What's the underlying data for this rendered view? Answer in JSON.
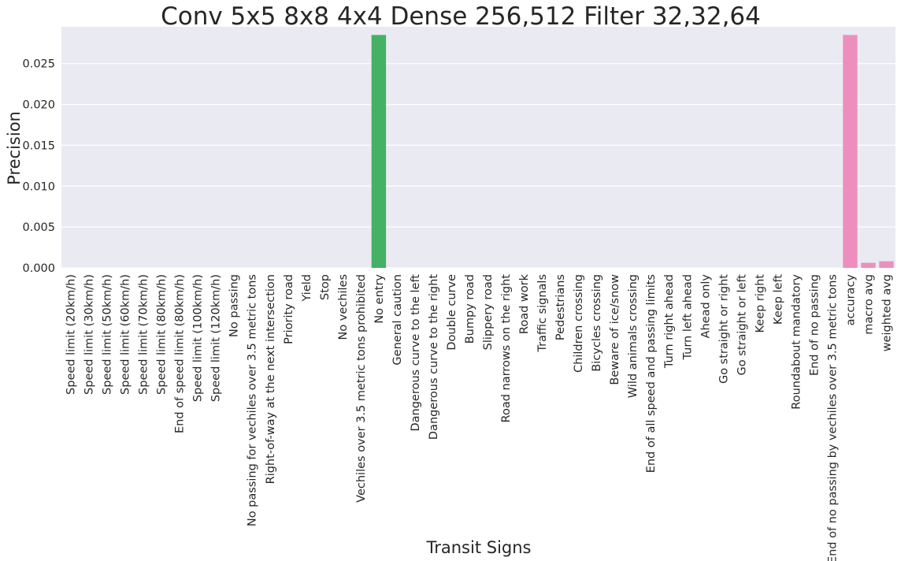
{
  "chart_data": {
    "type": "bar",
    "title": "Conv 5x5 8x8 4x4 Dense 256,512 Filter 32,32,64",
    "xlabel": "Transit Signs",
    "ylabel": "Precision",
    "ylim": [
      0,
      0.0295
    ],
    "yticks": [
      "0.000",
      "0.005",
      "0.010",
      "0.015",
      "0.020",
      "0.025"
    ],
    "ytick_values": [
      0,
      0.005,
      0.01,
      0.015,
      0.02,
      0.025
    ],
    "grid": true,
    "legend": "none",
    "categories": [
      "Speed limit (20km/h)",
      "Speed limit (30km/h)",
      "Speed limit (50km/h)",
      "Speed limit (60km/h)",
      "Speed limit (70km/h)",
      "Speed limit (80km/h)",
      "End of speed limit (80km/h)",
      "Speed limit (100km/h)",
      "Speed limit (120km/h)",
      "No passing",
      "No passing for vechiles over 3.5 metric tons",
      "Right-of-way at the next intersection",
      "Priority road",
      "Yield",
      "Stop",
      "No vechiles",
      "Vechiles over 3.5 metric tons prohibited",
      "No entry",
      "General caution",
      "Dangerous curve to the left",
      "Dangerous curve to the right",
      "Double curve",
      "Bumpy road",
      "Slippery road",
      "Road narrows on the right",
      "Road work",
      "Traffic signals",
      "Pedestrians",
      "Children crossing",
      "Bicycles crossing",
      "Beware of ice/snow",
      "Wild animals crossing",
      "End of all speed and passing limits",
      "Turn right ahead",
      "Turn left ahead",
      "Ahead only",
      "Go straight or right",
      "Go straight or left",
      "Keep right",
      "Keep left",
      "Roundabout mandatory",
      "End of no passing",
      "End of no passing by vechiles over 3.5 metric tons",
      "accuracy",
      "macro avg",
      "weighted avg"
    ],
    "values": [
      0,
      0,
      0,
      0,
      0,
      0,
      0,
      0,
      0,
      0,
      0,
      0,
      0,
      0,
      0,
      0,
      0,
      0.0285,
      0,
      0,
      0,
      0,
      0,
      0,
      0,
      0,
      0,
      0,
      0,
      0,
      0,
      0,
      0,
      0,
      0,
      0,
      0,
      0,
      0,
      0,
      0,
      0,
      0,
      0.0285,
      0.00062,
      0.00081
    ],
    "colors": [
      "#e8a3a7",
      "#e8a09a",
      "#e4a088",
      "#e0a678",
      "#dbab6e",
      "#d4b06a",
      "#cdb66a",
      "#c4ba69",
      "#b8bf6a",
      "#aac26a",
      "#9ac56a",
      "#88c86c",
      "#72ca72",
      "#5ccc7c",
      "#4dca86",
      "#42c98f",
      "#3ec897",
      "#45b164",
      "#4cc6a5",
      "#52c4ae",
      "#56c2b6",
      "#5ac1be",
      "#5cbfc6",
      "#5fbccd",
      "#63b9d4",
      "#6ab5da",
      "#74b0e0",
      "#80aae4",
      "#8ea3e7",
      "#9c9ce9",
      "#aa96ea",
      "#b690ea",
      "#c28be8",
      "#cc86e4",
      "#d583de",
      "#dd81d7",
      "#e381ce",
      "#e783c4",
      "#e985ba",
      "#eb88b0",
      "#ec8ba6",
      "#ec8e9c",
      "#ec9092",
      "#ec8fbf",
      "#ec8fbf",
      "#ec8fbf"
    ]
  }
}
